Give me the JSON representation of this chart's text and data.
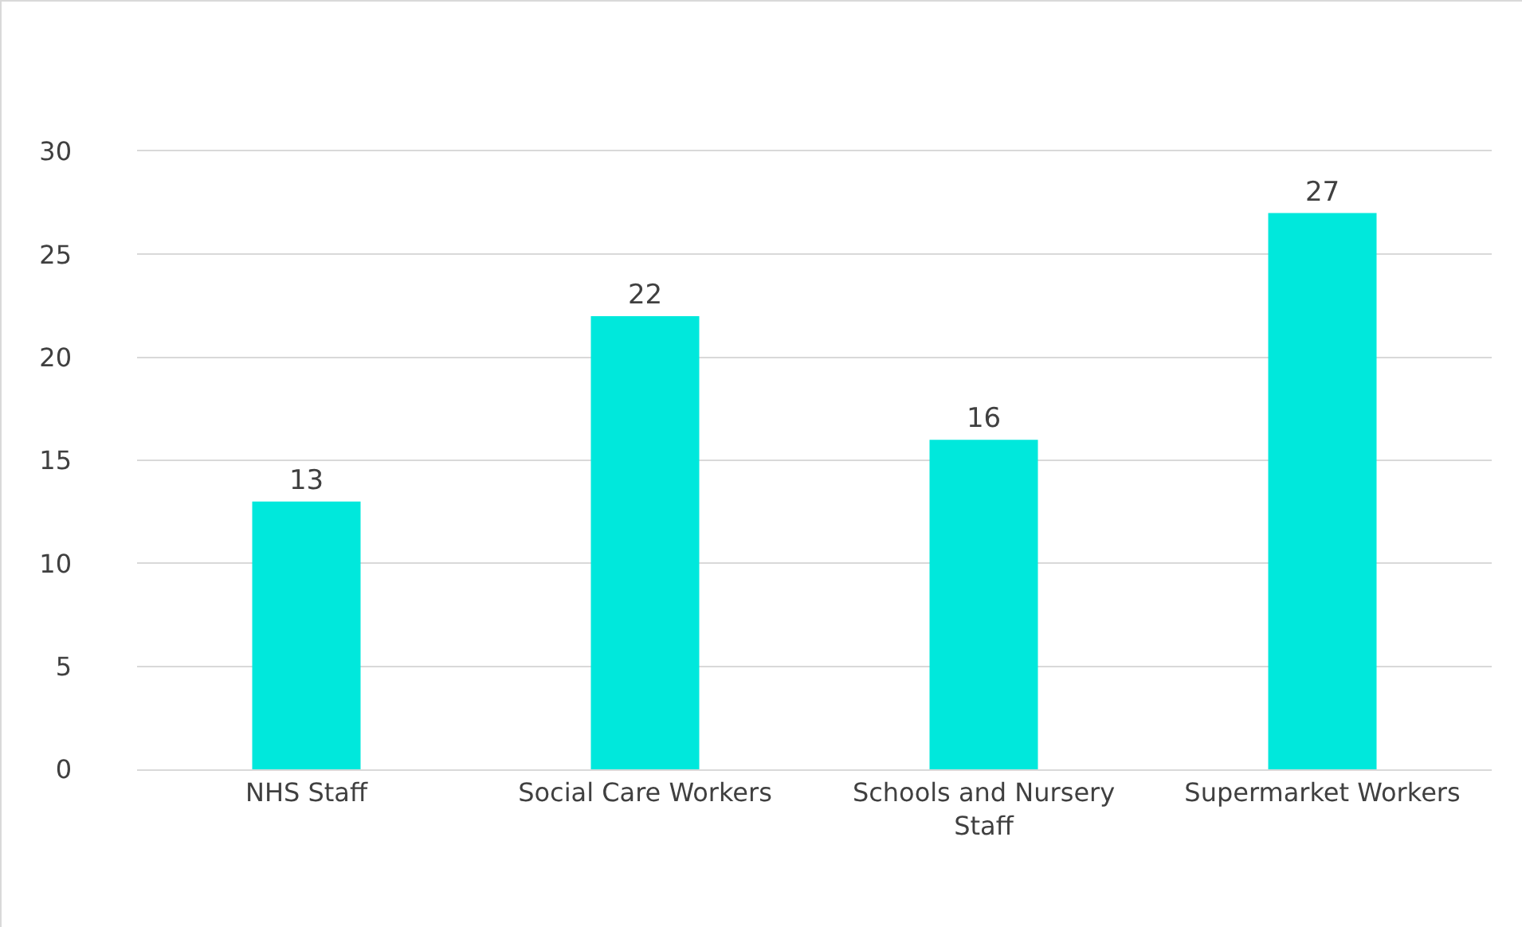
{
  "chart_data": {
    "type": "bar",
    "categories": [
      "NHS Staff",
      "Social Care Workers",
      "Schools and Nursery Staff",
      "Supermarket Workers"
    ],
    "values": [
      13,
      22,
      16,
      27
    ],
    "color": "#00e8dc",
    "ylim": [
      0,
      30
    ],
    "yticks": [
      0,
      5,
      10,
      15,
      20,
      25,
      30
    ],
    "grid": "y",
    "data_labels": true
  }
}
